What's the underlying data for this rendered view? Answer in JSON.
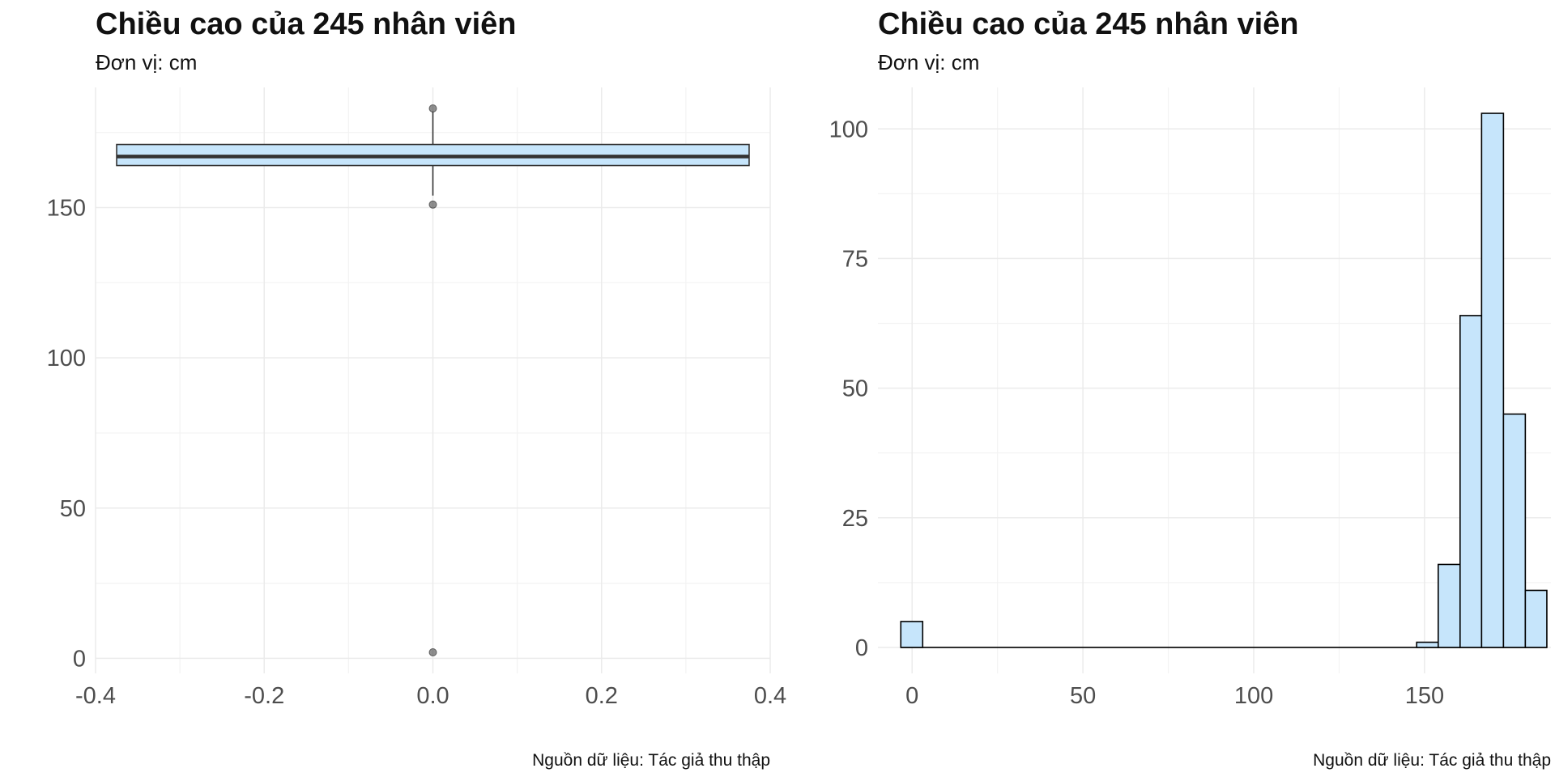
{
  "chart_data": [
    {
      "type": "box",
      "title": "Chiều cao của 245 nhân viên",
      "subtitle": "Đơn vị: cm",
      "caption": "Nguồn dữ liệu: Tác giả thu thập",
      "xlabel": "",
      "ylabel": "",
      "xlim": [
        -0.4,
        0.4
      ],
      "ylim": [
        -5,
        190
      ],
      "x_ticks": [
        -0.4,
        -0.2,
        0.0,
        0.2,
        0.4
      ],
      "y_ticks": [
        0,
        50,
        100,
        150
      ],
      "box": {
        "x": 0,
        "width": 0.75,
        "lower_whisker": 154,
        "q1": 164,
        "median": 167,
        "q3": 171,
        "upper_whisker": 182
      },
      "outliers": [
        183,
        151,
        2
      ],
      "colors": {
        "fill": "#c6e5fb",
        "outline": "#333333"
      },
      "grid": true
    },
    {
      "type": "histogram",
      "title": "Chiều cao của 245 nhân viên",
      "subtitle": "Đơn vị: cm",
      "caption": "Nguồn dữ liệu: Tác giả thu thập",
      "xlabel": "",
      "ylabel": "",
      "xlim": [
        -10,
        187
      ],
      "ylim": [
        -5,
        108
      ],
      "x_ticks": [
        0,
        50,
        100,
        150
      ],
      "y_ticks": [
        0,
        25,
        50,
        75,
        100
      ],
      "bins": [
        {
          "x0": -3.3,
          "x1": 3.1,
          "count": 5
        },
        {
          "x0": 147.7,
          "x1": 154.0,
          "count": 1
        },
        {
          "x0": 154.0,
          "x1": 160.4,
          "count": 16
        },
        {
          "x0": 160.4,
          "x1": 166.7,
          "count": 64
        },
        {
          "x0": 166.7,
          "x1": 173.1,
          "count": 103
        },
        {
          "x0": 173.1,
          "x1": 179.5,
          "count": 45
        },
        {
          "x0": 179.5,
          "x1": 185.8,
          "count": 11
        }
      ],
      "baseline_extent": [
        -3.3,
        185.8
      ],
      "colors": {
        "fill": "#c6e5fb",
        "outline": "#000000"
      },
      "grid": true
    }
  ]
}
